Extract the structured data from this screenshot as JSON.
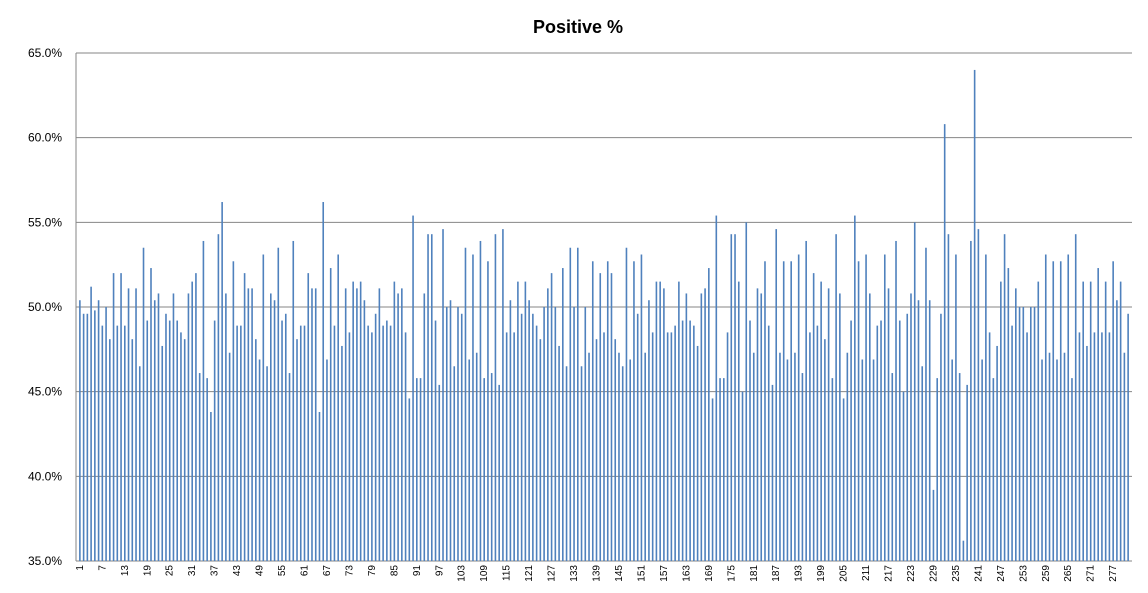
{
  "chart_data": {
    "type": "bar",
    "title": "Positive %",
    "categories": [
      "1",
      null,
      null,
      null,
      null,
      null,
      "7",
      null,
      null,
      null,
      null,
      null,
      "13",
      null,
      null,
      null,
      null,
      null,
      "19",
      null,
      null,
      null,
      null,
      null,
      "25",
      null,
      null,
      null,
      null,
      null,
      "31",
      null,
      null,
      null,
      null,
      null,
      "37",
      null,
      null,
      null,
      null,
      null,
      "43",
      null,
      null,
      null,
      null,
      null,
      "49",
      null,
      null,
      null,
      null,
      null,
      "55",
      null,
      null,
      null,
      null,
      null,
      "61",
      null,
      null,
      null,
      null,
      null,
      "67",
      null,
      null,
      null,
      null,
      null,
      "73",
      null,
      null,
      null,
      null,
      null,
      "79",
      null,
      null,
      null,
      null,
      null,
      "85",
      null,
      null,
      null,
      null,
      null,
      "91",
      null,
      null,
      null,
      null,
      null,
      "97",
      null,
      null,
      null,
      null,
      null,
      "103",
      null,
      null,
      null,
      null,
      null,
      "109",
      null,
      null,
      null,
      null,
      null,
      "115",
      null,
      null,
      null,
      null,
      null,
      "121",
      null,
      null,
      null,
      null,
      null,
      "127",
      null,
      null,
      null,
      null,
      null,
      "133",
      null,
      null,
      null,
      null,
      null,
      "139",
      null,
      null,
      null,
      null,
      null,
      "145",
      null,
      null,
      null,
      null,
      null,
      "151",
      null,
      null,
      null,
      null,
      null,
      "157",
      null,
      null,
      null,
      null,
      null,
      "163",
      null,
      null,
      null,
      null,
      null,
      "169",
      null,
      null,
      null,
      null,
      null,
      "175",
      null,
      null,
      null,
      null,
      null,
      "181",
      null,
      null,
      null,
      null,
      null,
      "187",
      null,
      null,
      null,
      null,
      null,
      "193",
      null,
      null,
      null,
      null,
      null,
      "199",
      null,
      null,
      null,
      null,
      null,
      "205",
      null,
      null,
      null,
      null,
      null,
      "211",
      null,
      null,
      null,
      null,
      null,
      "217",
      null,
      null,
      null,
      null,
      null,
      "223",
      null,
      null,
      null,
      null,
      null,
      "229",
      null,
      null,
      null,
      null,
      null,
      "235",
      null,
      null,
      null,
      null,
      null,
      "241",
      null,
      null,
      null,
      null,
      null,
      "247",
      null,
      null,
      null,
      null,
      null,
      "253",
      null,
      null,
      null,
      null,
      null,
      "259",
      null,
      null,
      null,
      null,
      null,
      "265",
      null,
      null,
      null,
      null,
      null,
      "271",
      null,
      null,
      null,
      null,
      null,
      "277",
      null,
      null,
      null,
      null
    ],
    "values": [
      50.4,
      49.6,
      49.6,
      51.2,
      49.8,
      50.4,
      48.9,
      50.0,
      48.1,
      52.0,
      48.9,
      52.0,
      48.9,
      51.1,
      48.1,
      51.1,
      46.5,
      53.5,
      49.2,
      52.3,
      50.4,
      50.8,
      47.7,
      49.6,
      49.2,
      50.8,
      49.2,
      48.5,
      48.1,
      50.8,
      51.5,
      52.0,
      46.1,
      53.9,
      45.8,
      43.8,
      49.2,
      54.3,
      56.2,
      50.8,
      47.3,
      52.7,
      48.9,
      48.9,
      52.0,
      51.1,
      51.1,
      48.1,
      46.9,
      53.1,
      46.5,
      50.8,
      50.4,
      53.5,
      49.2,
      49.6,
      46.1,
      53.9,
      48.1,
      48.9,
      48.9,
      52.0,
      51.1,
      51.1,
      43.8,
      56.2,
      46.9,
      52.3,
      48.9,
      53.1,
      47.7,
      51.1,
      48.5,
      51.5,
      51.1,
      51.5,
      50.4,
      48.9,
      48.5,
      49.6,
      51.1,
      48.9,
      49.2,
      48.9,
      51.5,
      50.8,
      51.1,
      48.5,
      44.6,
      55.4,
      45.8,
      45.8,
      50.8,
      54.3,
      54.3,
      49.2,
      45.4,
      54.6,
      50.0,
      50.4,
      46.5,
      50.0,
      49.6,
      53.5,
      46.9,
      53.1,
      47.3,
      53.9,
      45.8,
      52.7,
      46.1,
      54.3,
      45.4,
      54.6,
      48.5,
      50.4,
      48.5,
      51.5,
      49.6,
      51.5,
      50.4,
      49.6,
      48.9,
      48.1,
      50.0,
      51.1,
      52.0,
      50.0,
      47.7,
      52.3,
      46.5,
      53.5,
      50.0,
      53.5,
      46.5,
      50.0,
      47.3,
      52.7,
      48.1,
      52.0,
      48.5,
      52.7,
      52.0,
      48.1,
      47.3,
      46.5,
      53.5,
      46.9,
      52.7,
      49.6,
      53.1,
      47.3,
      50.4,
      48.5,
      51.5,
      51.5,
      51.1,
      48.5,
      48.5,
      48.9,
      51.5,
      49.2,
      50.8,
      49.2,
      48.9,
      47.7,
      50.8,
      51.1,
      52.3,
      44.6,
      55.4,
      45.8,
      45.8,
      48.5,
      54.3,
      54.3,
      51.5,
      45.0,
      55.0,
      49.2,
      47.3,
      51.1,
      50.8,
      52.7,
      48.9,
      45.4,
      54.6,
      47.3,
      52.7,
      46.9,
      52.7,
      47.3,
      53.1,
      46.1,
      53.9,
      48.5,
      52.0,
      48.9,
      51.5,
      48.1,
      51.1,
      45.8,
      54.3,
      50.8,
      44.6,
      47.3,
      49.2,
      55.4,
      52.7,
      46.9,
      53.1,
      50.8,
      46.9,
      48.9,
      49.2,
      53.1,
      51.1,
      46.1,
      53.9,
      49.2,
      45.0,
      49.6,
      50.8,
      55.0,
      50.4,
      46.5,
      53.5,
      50.4,
      39.2,
      45.8,
      49.6,
      60.8,
      54.3,
      46.9,
      53.1,
      46.1,
      36.2,
      45.4,
      53.9,
      64.0,
      54.6,
      46.9,
      53.1,
      48.5,
      45.8,
      47.7,
      51.5,
      54.3,
      52.3,
      48.9,
      51.1,
      50.0,
      50.0,
      48.5,
      50.0,
      50.0,
      51.5,
      46.9,
      53.1,
      47.3,
      52.7,
      46.9,
      52.7,
      47.3,
      53.1,
      45.8,
      54.3,
      48.5,
      51.5,
      47.7,
      51.5,
      48.5,
      52.3,
      48.5,
      51.5,
      48.5,
      52.7,
      50.4,
      51.5,
      47.3,
      49.6
    ],
    "color": "#4f81bd",
    "ylim": [
      35,
      65
    ],
    "yticks": [
      {
        "value": 35,
        "label": "35.0%"
      },
      {
        "value": 40,
        "label": "40.0%"
      },
      {
        "value": 45,
        "label": "45.0%"
      },
      {
        "value": 50,
        "label": "50.0%"
      },
      {
        "value": 55,
        "label": "55.0%"
      },
      {
        "value": 60,
        "label": "60.0%"
      },
      {
        "value": 65,
        "label": "65.0%"
      }
    ],
    "grid": true
  }
}
